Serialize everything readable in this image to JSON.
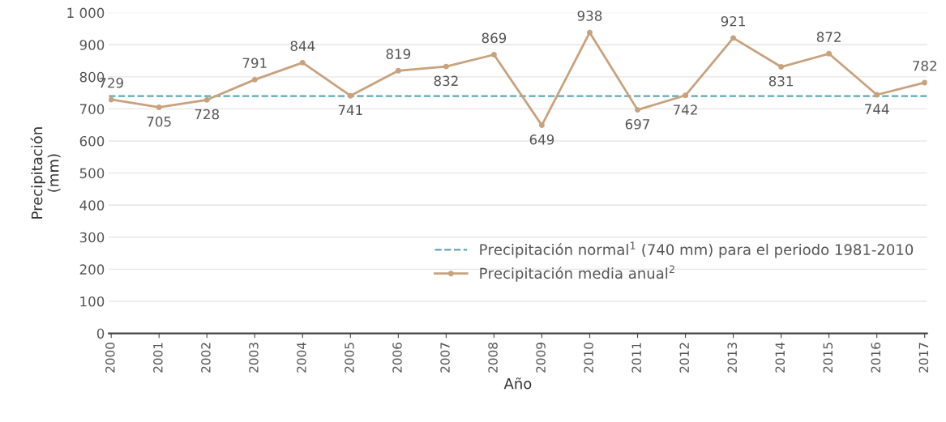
{
  "chart_data": {
    "type": "line",
    "xlabel": "Año",
    "ylabel": "Precipitación\n(mm)",
    "categories": [
      "2000",
      "2001",
      "2002",
      "2003",
      "2004",
      "2005",
      "2006",
      "2007",
      "2008",
      "2009",
      "2010",
      "2011",
      "2012",
      "2013",
      "2014",
      "2015",
      "2016",
      "2017"
    ],
    "series": [
      {
        "name": "Precipitación media anual$^{2}$",
        "color": "#c8a27c",
        "values": [
          729,
          705,
          728,
          791,
          844,
          741,
          819,
          832,
          869,
          649,
          938,
          697,
          742,
          921,
          831,
          872,
          744,
          782
        ]
      }
    ],
    "ref_lines": [
      {
        "axis": "y",
        "value": 740,
        "label": "Precipitación normal$^{1}$ (740 mm) para el periodo 1981-2010",
        "color": "#5fa9b3",
        "line_style": "dashed"
      }
    ],
    "ylim": [
      0,
      1000
    ],
    "yticks": [
      0,
      100,
      200,
      300,
      400,
      500,
      600,
      700,
      800,
      900,
      {
        "value": 1000,
        "label": "1 000"
      }
    ],
    "grid": "y",
    "legend": "bottom right",
    "marker": "circle",
    "data_labels": true
  }
}
